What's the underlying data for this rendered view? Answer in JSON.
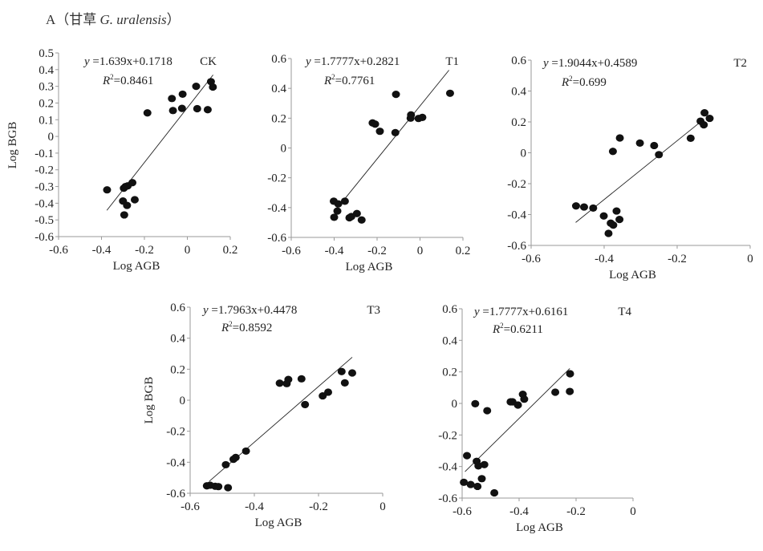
{
  "figure": {
    "panel_label": "A",
    "title_cn": "甘草",
    "title_species": "G. uralensis"
  },
  "chart_data": [
    {
      "type": "scatter",
      "panel": "CK",
      "xlabel": "Log AGB",
      "ylabel": "Log BGB",
      "xlim": [
        -0.6,
        0.2
      ],
      "ylim": [
        -0.6,
        0.5
      ],
      "xticks": [
        -0.6,
        -0.4,
        -0.2,
        0,
        0.2
      ],
      "xtick_labels": [
        "-0.6",
        "-0.4",
        "-0.2",
        "0",
        "0.2"
      ],
      "yticks": [
        0.5,
        0.4,
        0.3,
        0.2,
        0.1,
        0,
        -0.1,
        -0.2,
        -0.3,
        -0.4,
        -0.5,
        -0.6
      ],
      "ytick_labels": [
        "0.5",
        "0.4",
        "0.3",
        "0.2",
        "0.1",
        "0",
        "-0.1",
        "-0.2",
        "-0.3",
        "-0.4",
        "-0.5",
        "-0.6"
      ],
      "equation": "=1.639x+0.1718",
      "r2": "=0.8461",
      "fit": {
        "slope": 1.639,
        "intercept": 0.1718,
        "x_range": [
          -0.375,
          0.12
        ]
      },
      "points": [
        [
          -0.374,
          -0.32
        ],
        [
          -0.296,
          -0.31
        ],
        [
          -0.288,
          -0.3
        ],
        [
          -0.278,
          -0.296
        ],
        [
          -0.256,
          -0.277
        ],
        [
          -0.3,
          -0.387
        ],
        [
          -0.281,
          -0.413
        ],
        [
          -0.245,
          -0.379
        ],
        [
          -0.294,
          -0.47
        ],
        [
          -0.186,
          0.141
        ],
        [
          -0.072,
          0.227
        ],
        [
          -0.067,
          0.155
        ],
        [
          -0.022,
          0.253
        ],
        [
          -0.025,
          0.168
        ],
        [
          0.041,
          0.3
        ],
        [
          0.046,
          0.166
        ],
        [
          0.095,
          0.16
        ],
        [
          0.11,
          0.328
        ],
        [
          0.119,
          0.296
        ]
      ]
    },
    {
      "type": "scatter",
      "panel": "T1",
      "xlabel": "Log AGB",
      "ylabel": "",
      "xlim": [
        -0.6,
        0.2
      ],
      "ylim": [
        -0.6,
        0.6
      ],
      "xticks": [
        -0.6,
        -0.4,
        -0.2,
        0,
        0.2
      ],
      "xtick_labels": [
        "-0.6",
        "-0.4",
        "-0.2",
        "0",
        "0.2"
      ],
      "yticks": [
        0.6,
        0.4,
        0.2,
        0,
        -0.2,
        -0.4,
        -0.6
      ],
      "ytick_labels": [
        "0.6",
        "0.4",
        "0.2",
        "0",
        "-0.2",
        "-0.4",
        "-0.6"
      ],
      "equation": "=1.7777x+0.2821",
      "r2": "=0.7761",
      "fit": {
        "slope": 1.7777,
        "intercept": 0.2821,
        "x_range": [
          -0.35,
          0.135
        ]
      },
      "points": [
        [
          -0.402,
          -0.357
        ],
        [
          -0.381,
          -0.375
        ],
        [
          -0.35,
          -0.357
        ],
        [
          -0.385,
          -0.423
        ],
        [
          -0.4,
          -0.465
        ],
        [
          -0.329,
          -0.468
        ],
        [
          -0.32,
          -0.46
        ],
        [
          -0.294,
          -0.44
        ],
        [
          -0.272,
          -0.483
        ],
        [
          -0.221,
          0.168
        ],
        [
          -0.209,
          0.16
        ],
        [
          -0.187,
          0.112
        ],
        [
          -0.112,
          0.36
        ],
        [
          -0.115,
          0.103
        ],
        [
          -0.042,
          0.222
        ],
        [
          -0.044,
          0.2
        ],
        [
          -0.007,
          0.198
        ],
        [
          0.011,
          0.205
        ],
        [
          0.14,
          0.367
        ]
      ]
    },
    {
      "type": "scatter",
      "panel": "T2",
      "xlabel": "Log AGB",
      "ylabel": "",
      "xlim": [
        -0.6,
        0
      ],
      "ylim": [
        -0.6,
        0.6
      ],
      "xticks": [
        -0.6,
        -0.4,
        -0.2,
        0
      ],
      "xtick_labels": [
        "-0.6",
        "-0.4",
        "-0.2",
        "0"
      ],
      "yticks": [
        0.6,
        0.4,
        0.2,
        0,
        -0.2,
        -0.4,
        -0.6
      ],
      "ytick_labels": [
        "0.6",
        "0.4",
        "0.2",
        "0",
        "-0.2",
        "-0.4",
        "-0.6"
      ],
      "equation": "=1.9044x+0.4589",
      "r2": "=0.699",
      "fit": {
        "slope": 1.9044,
        "intercept": 0.4589,
        "x_range": [
          -0.478,
          -0.13
        ]
      },
      "points": [
        [
          -0.477,
          -0.344
        ],
        [
          -0.455,
          -0.351
        ],
        [
          -0.43,
          -0.358
        ],
        [
          -0.401,
          -0.409
        ],
        [
          -0.382,
          -0.456
        ],
        [
          -0.375,
          -0.468
        ],
        [
          -0.388,
          -0.522
        ],
        [
          -0.366,
          -0.377
        ],
        [
          -0.358,
          -0.432
        ],
        [
          -0.376,
          0.009
        ],
        [
          -0.357,
          0.096
        ],
        [
          -0.302,
          0.063
        ],
        [
          -0.263,
          0.047
        ],
        [
          -0.25,
          -0.012
        ],
        [
          -0.163,
          0.094
        ],
        [
          -0.136,
          0.205
        ],
        [
          -0.125,
          0.259
        ],
        [
          -0.127,
          0.181
        ],
        [
          -0.111,
          0.223
        ]
      ]
    },
    {
      "type": "scatter",
      "panel": "T3",
      "xlabel": "Log AGB",
      "ylabel": "Log BGB",
      "xlim": [
        -0.6,
        0
      ],
      "ylim": [
        -0.6,
        0.6
      ],
      "xticks": [
        -0.6,
        -0.4,
        -0.2,
        0
      ],
      "xtick_labels": [
        "-0.6",
        "-0.4",
        "-0.2",
        "0"
      ],
      "yticks": [
        0.6,
        0.4,
        0.2,
        0,
        -0.2,
        -0.4,
        -0.6
      ],
      "ytick_labels": [
        "0.6",
        "0.4",
        "0.2",
        "0",
        "-0.2",
        "-0.4",
        "-0.6"
      ],
      "equation": "=1.7963x+0.4478",
      "r2": "=0.8592",
      "fit": {
        "slope": 1.7963,
        "intercept": 0.4478,
        "x_range": [
          -0.54,
          -0.095
        ]
      },
      "points": [
        [
          -0.548,
          -0.552
        ],
        [
          -0.538,
          -0.548
        ],
        [
          -0.522,
          -0.555
        ],
        [
          -0.512,
          -0.557
        ],
        [
          -0.482,
          -0.564
        ],
        [
          -0.489,
          -0.416
        ],
        [
          -0.465,
          -0.381
        ],
        [
          -0.458,
          -0.369
        ],
        [
          -0.426,
          -0.328
        ],
        [
          -0.321,
          0.11
        ],
        [
          -0.299,
          0.107
        ],
        [
          -0.294,
          0.134
        ],
        [
          -0.253,
          0.138
        ],
        [
          -0.242,
          -0.028
        ],
        [
          -0.187,
          0.028
        ],
        [
          -0.17,
          0.052
        ],
        [
          -0.128,
          0.185
        ],
        [
          -0.118,
          0.112
        ],
        [
          -0.095,
          0.176
        ]
      ]
    },
    {
      "type": "scatter",
      "panel": "T4",
      "xlabel": "Log AGB",
      "ylabel": "",
      "xlim": [
        -0.6,
        0
      ],
      "ylim": [
        -0.6,
        0.6
      ],
      "xticks": [
        -0.6,
        -0.4,
        -0.2,
        0
      ],
      "xtick_labels": [
        "-0.6",
        "-0.4",
        "-0.2",
        "0"
      ],
      "yticks": [
        0.6,
        0.4,
        0.2,
        0,
        -0.2,
        -0.4,
        -0.6
      ],
      "ytick_labels": [
        "0.6",
        "0.4",
        "0.2",
        "0",
        "-0.2",
        "-0.4",
        "-0.6"
      ],
      "equation": "=1.7777x+0.6161",
      "r2": "=0.6211",
      "fit": {
        "slope": 1.7777,
        "intercept": 0.6161,
        "x_range": [
          -0.59,
          -0.222
        ]
      },
      "points": [
        [
          -0.594,
          -0.5
        ],
        [
          -0.57,
          -0.514
        ],
        [
          -0.546,
          -0.526
        ],
        [
          -0.531,
          -0.477
        ],
        [
          -0.487,
          -0.567
        ],
        [
          -0.583,
          -0.331
        ],
        [
          -0.549,
          -0.367
        ],
        [
          -0.543,
          -0.396
        ],
        [
          -0.522,
          -0.388
        ],
        [
          -0.554,
          -0.002
        ],
        [
          -0.512,
          -0.046
        ],
        [
          -0.43,
          0.01
        ],
        [
          -0.423,
          0.01
        ],
        [
          -0.404,
          -0.01
        ],
        [
          -0.387,
          0.058
        ],
        [
          -0.382,
          0.027
        ],
        [
          -0.273,
          0.071
        ],
        [
          -0.222,
          0.076
        ],
        [
          -0.221,
          0.188
        ]
      ]
    }
  ]
}
